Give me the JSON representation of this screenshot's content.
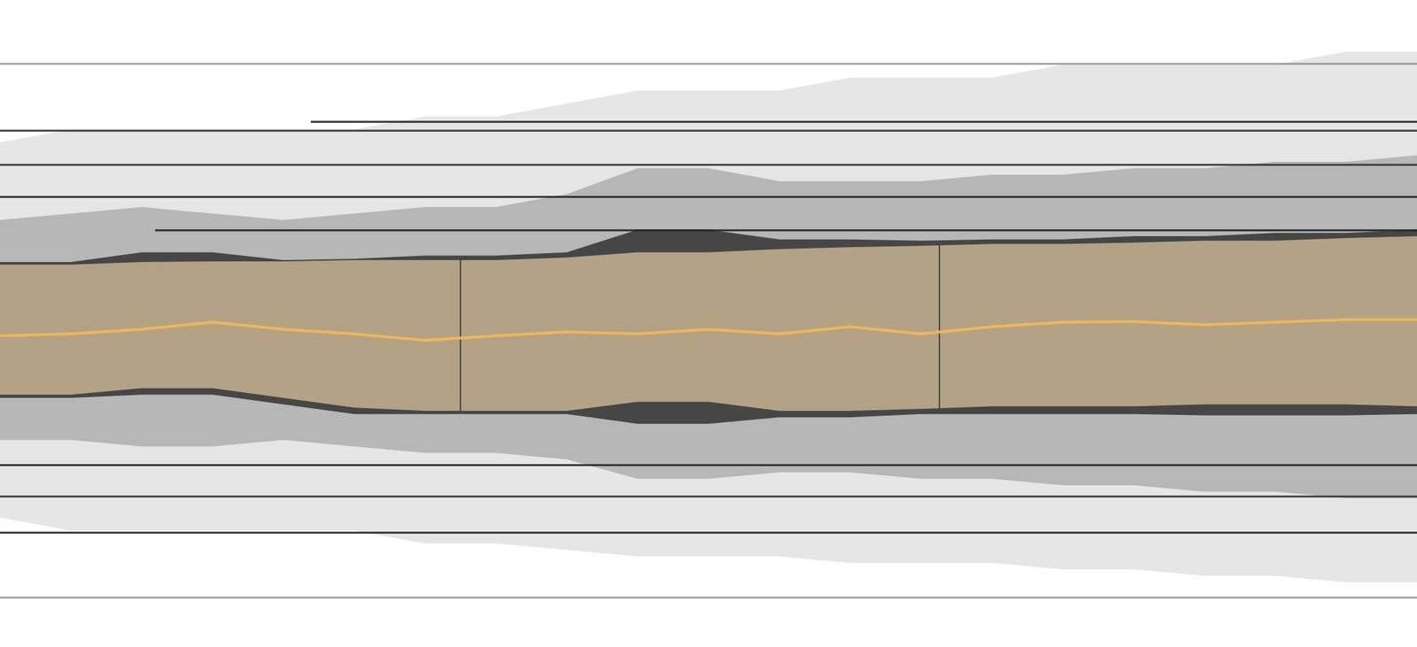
{
  "chart_data": {
    "type": "area",
    "xlim": [
      0,
      100
    ],
    "ylim": [
      0,
      100
    ],
    "tick_labels": false,
    "grid": false,
    "x": [
      0,
      5,
      10,
      15,
      20,
      25,
      30,
      35,
      40,
      45,
      50,
      55,
      60,
      65,
      70,
      75,
      80,
      85,
      90,
      95,
      100
    ],
    "cloud": {
      "color": "#c8c8c8",
      "upper": [
        78,
        80,
        80,
        80,
        80,
        80,
        82,
        82,
        84,
        86,
        86,
        86,
        88,
        88,
        88,
        90,
        90,
        90,
        90,
        92,
        92
      ],
      "lower": [
        20,
        18,
        18,
        18,
        18,
        18,
        16,
        16,
        15,
        14,
        14,
        14,
        13,
        13,
        13,
        12,
        12,
        11,
        11,
        10,
        10
      ]
    },
    "core": {
      "color": "#8a8a8a",
      "upper": [
        66,
        67,
        68,
        67,
        66,
        67,
        68,
        68,
        70,
        74,
        74,
        72,
        72,
        72,
        73,
        73,
        74,
        74,
        75,
        75,
        76
      ],
      "lower": [
        32,
        32,
        31,
        31,
        32,
        31,
        30,
        30,
        29,
        26,
        26,
        27,
        27,
        26,
        26,
        25,
        25,
        24,
        24,
        23,
        23
      ]
    },
    "outer_band": {
      "color": "#3a3a3a",
      "upper": [
        59.5,
        59.5,
        61,
        61,
        59.8,
        60,
        60.5,
        60.5,
        61,
        64.5,
        64.5,
        63,
        63,
        62.8,
        63,
        63,
        63.5,
        63.5,
        64,
        64,
        64.5
      ],
      "lower": [
        38.5,
        38.5,
        39,
        39,
        37.5,
        36,
        36,
        36,
        36,
        34.5,
        34.5,
        35.5,
        35.5,
        36,
        36,
        36,
        36,
        35.8,
        35.8,
        35.8,
        36
      ]
    },
    "band": {
      "color": "#b3a286",
      "upper": [
        59.1,
        59.1,
        59.5,
        59.6,
        59.6,
        59.8,
        59.8,
        59.8,
        60.2,
        61.0,
        61.0,
        61.5,
        61.8,
        62.0,
        62.3,
        62.3,
        62.5,
        62.8,
        62.8,
        63.2,
        63.5
      ],
      "lower": [
        39.0,
        39.0,
        40.0,
        40.0,
        38.5,
        37.0,
        36.5,
        36.5,
        36.5,
        37.9,
        37.9,
        36.5,
        36.5,
        36.8,
        37.2,
        37.2,
        37.2,
        37.5,
        37.5,
        37.5,
        37.2
      ]
    },
    "series": [
      {
        "color": "#f0b55a",
        "line_style": "solid",
        "values": [
          48.1,
          48.4,
          49.1,
          50.2,
          49.1,
          48.4,
          47.4,
          48.1,
          48.7,
          48.4,
          49.1,
          48.4,
          49.5,
          48.4,
          49.5,
          50.2,
          50.3,
          49.8,
          50.2,
          50.6,
          50.6
        ]
      }
    ],
    "hlines": [
      {
        "y": 90.2,
        "x": [
          0,
          100
        ],
        "color": "#999999"
      },
      {
        "y": 81.2,
        "x": [
          22,
          100
        ],
        "color": "#222222"
      },
      {
        "y": 79.8,
        "x": [
          0,
          100
        ],
        "color": "#333333"
      },
      {
        "y": 74.6,
        "x": [
          0,
          100
        ],
        "color": "#333333"
      },
      {
        "y": 69.6,
        "x": [
          0,
          100
        ],
        "color": "#222222"
      },
      {
        "y": 64.4,
        "x": [
          11,
          100
        ],
        "color": "#222222"
      },
      {
        "y": 28.2,
        "x": [
          0,
          100
        ],
        "color": "#222222"
      },
      {
        "y": 23.3,
        "x": [
          0,
          100
        ],
        "color": "#333333"
      },
      {
        "y": 17.7,
        "x": [
          0,
          100
        ],
        "color": "#222222"
      },
      {
        "y": 7.7,
        "x": [
          0,
          100
        ],
        "color": "#999999"
      }
    ],
    "vlines": [
      32.5,
      66.3
    ]
  }
}
